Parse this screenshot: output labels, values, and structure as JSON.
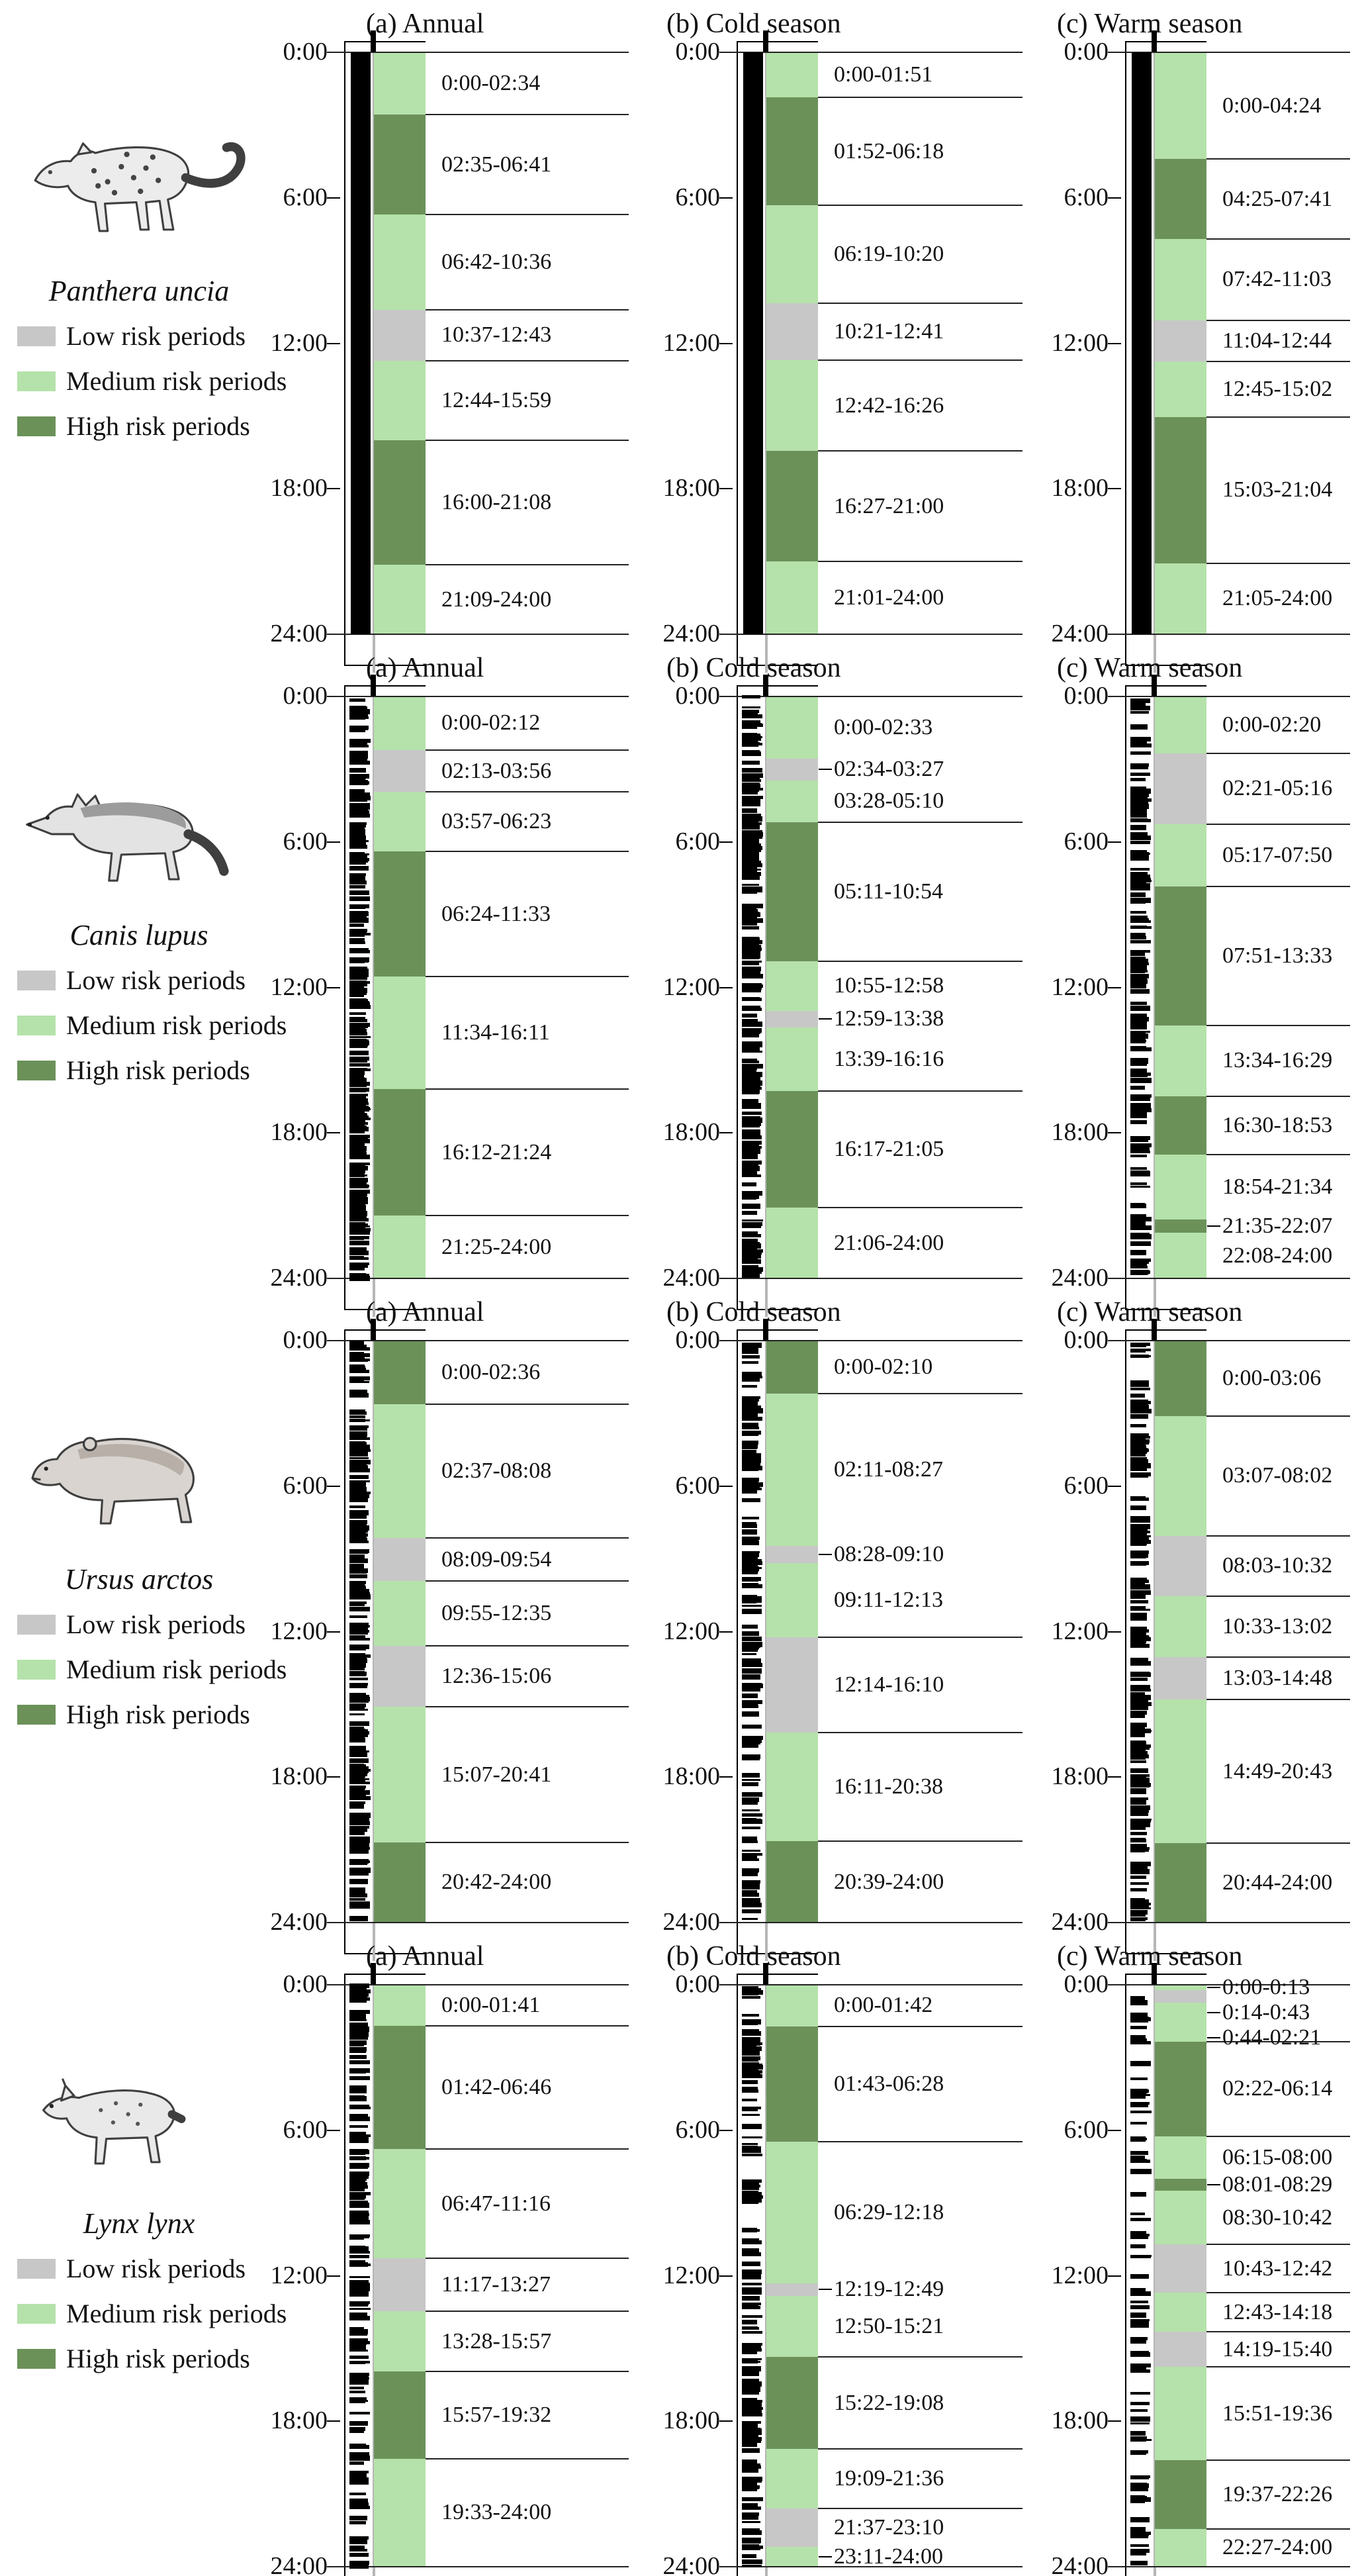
{
  "figure": {
    "seasons": [
      {
        "key": "annual",
        "label": "(a)  Annual"
      },
      {
        "key": "cold",
        "label": "(b)  Cold season"
      },
      {
        "key": "warm",
        "label": "(c)  Warm season"
      }
    ],
    "legend": [
      {
        "level": "low",
        "label": "Low risk periods"
      },
      {
        "level": "medium",
        "label": "Medium risk periods"
      },
      {
        "level": "high",
        "label": "High risk periods"
      }
    ],
    "time_ticks": [
      "0:00",
      "6:00",
      "12:00",
      "18:00",
      "24:00"
    ],
    "colors": {
      "low": "#c7c7c7",
      "medium": "#b5e2aa",
      "high": "#6b9159"
    }
  },
  "chart_data": {
    "type": "heatmap",
    "description": "Diel predation-risk periods (24-h timelines) per species and season; black rug marks show activity records",
    "time_range": [
      "0:00",
      "24:00"
    ],
    "risk_levels": [
      "low",
      "medium",
      "high"
    ],
    "species": [
      {
        "name": "Panthera uncia",
        "panels": [
          {
            "season": "annual",
            "rug": {
              "style": "solid"
            },
            "segments": [
              {
                "period": "0:00-02:34",
                "risk": "medium"
              },
              {
                "period": "02:35-06:41",
                "risk": "high"
              },
              {
                "period": "06:42-10:36",
                "risk": "medium"
              },
              {
                "period": "10:37-12:43",
                "risk": "low"
              },
              {
                "period": "12:44-15:59",
                "risk": "medium"
              },
              {
                "period": "16:00-21:08",
                "risk": "high"
              },
              {
                "period": "21:09-24:00",
                "risk": "medium"
              }
            ]
          },
          {
            "season": "cold",
            "rug": {
              "style": "solid"
            },
            "segments": [
              {
                "period": "0:00-01:51",
                "risk": "medium"
              },
              {
                "period": "01:52-06:18",
                "risk": "high"
              },
              {
                "period": "06:19-10:20",
                "risk": "medium"
              },
              {
                "period": "10:21-12:41",
                "risk": "low"
              },
              {
                "period": "12:42-16:26",
                "risk": "medium"
              },
              {
                "period": "16:27-21:00",
                "risk": "high"
              },
              {
                "period": "21:01-24:00",
                "risk": "medium"
              }
            ]
          },
          {
            "season": "warm",
            "rug": {
              "style": "solid"
            },
            "segments": [
              {
                "period": "0:00-04:24",
                "risk": "medium"
              },
              {
                "period": "04:25-07:41",
                "risk": "high"
              },
              {
                "period": "07:42-11:03",
                "risk": "medium"
              },
              {
                "period": "11:04-12:44",
                "risk": "low"
              },
              {
                "period": "12:45-15:02",
                "risk": "medium"
              },
              {
                "period": "15:03-21:04",
                "risk": "high"
              },
              {
                "period": "21:05-24:00",
                "risk": "medium"
              }
            ]
          }
        ]
      },
      {
        "name": "Canis lupus",
        "panels": [
          {
            "season": "annual",
            "rug": {
              "style": "ticks",
              "count": 260,
              "seed": 11
            },
            "segments": [
              {
                "period": "0:00-02:12",
                "risk": "medium"
              },
              {
                "period": "02:13-03:56",
                "risk": "low"
              },
              {
                "period": "03:57-06:23",
                "risk": "medium"
              },
              {
                "period": "06:24-11:33",
                "risk": "high"
              },
              {
                "period": "11:34-16:11",
                "risk": "medium"
              },
              {
                "period": "16:12-21:24",
                "risk": "high"
              },
              {
                "period": "21:25-24:00",
                "risk": "medium"
              }
            ]
          },
          {
            "season": "cold",
            "rug": {
              "style": "ticks",
              "count": 240,
              "seed": 12
            },
            "segments": [
              {
                "period": "0:00-02:33",
                "risk": "medium"
              },
              {
                "period": "02:34-03:27",
                "risk": "low"
              },
              {
                "period": "03:28-05:10",
                "risk": "medium"
              },
              {
                "period": "05:11-10:54",
                "risk": "high"
              },
              {
                "period": "10:55-12:58",
                "risk": "medium"
              },
              {
                "period": "12:59-13:38",
                "risk": "low"
              },
              {
                "period": "13:39-16:16",
                "risk": "medium"
              },
              {
                "period": "16:17-21:05",
                "risk": "high"
              },
              {
                "period": "21:06-24:00",
                "risk": "medium"
              }
            ]
          },
          {
            "season": "warm",
            "rug": {
              "style": "ticks",
              "count": 160,
              "seed": 13
            },
            "segments": [
              {
                "period": "0:00-02:20",
                "risk": "medium"
              },
              {
                "period": "02:21-05:16",
                "risk": "low"
              },
              {
                "period": "05:17-07:50",
                "risk": "medium"
              },
              {
                "period": "07:51-13:33",
                "risk": "high"
              },
              {
                "period": "13:34-16:29",
                "risk": "medium"
              },
              {
                "period": "16:30-18:53",
                "risk": "high"
              },
              {
                "period": "18:54-21:34",
                "risk": "medium"
              },
              {
                "period": "21:35-22:07",
                "risk": "high"
              },
              {
                "period": "22:08-24:00",
                "risk": "medium"
              }
            ]
          }
        ]
      },
      {
        "name": "Ursus arctos",
        "panels": [
          {
            "season": "annual",
            "rug": {
              "style": "ticks",
              "count": 215,
              "seed": 21
            },
            "segments": [
              {
                "period": "0:00-02:36",
                "risk": "high"
              },
              {
                "period": "02:37-08:08",
                "risk": "medium"
              },
              {
                "period": "08:09-09:54",
                "risk": "low"
              },
              {
                "period": "09:55-12:35",
                "risk": "medium"
              },
              {
                "period": "12:36-15:06",
                "risk": "low"
              },
              {
                "period": "15:07-20:41",
                "risk": "medium"
              },
              {
                "period": "20:42-24:00",
                "risk": "high"
              }
            ]
          },
          {
            "season": "cold",
            "rug": {
              "style": "ticks",
              "count": 150,
              "seed": 22
            },
            "segments": [
              {
                "period": "0:00-02:10",
                "risk": "high"
              },
              {
                "period": "02:11-08:27",
                "risk": "medium"
              },
              {
                "period": "08:28-09:10",
                "risk": "low"
              },
              {
                "period": "09:11-12:13",
                "risk": "medium"
              },
              {
                "period": "12:14-16:10",
                "risk": "low"
              },
              {
                "period": "16:11-20:38",
                "risk": "medium"
              },
              {
                "period": "20:39-24:00",
                "risk": "high"
              }
            ]
          },
          {
            "season": "warm",
            "rug": {
              "style": "ticks",
              "count": 175,
              "seed": 23
            },
            "segments": [
              {
                "period": "0:00-03:06",
                "risk": "high"
              },
              {
                "period": "03:07-08:02",
                "risk": "medium"
              },
              {
                "period": "08:03-10:32",
                "risk": "low"
              },
              {
                "period": "10:33-13:02",
                "risk": "medium"
              },
              {
                "period": "13:03-14:48",
                "risk": "low"
              },
              {
                "period": "14:49-20:43",
                "risk": "medium"
              },
              {
                "period": "20:44-24:00",
                "risk": "high"
              }
            ]
          }
        ]
      },
      {
        "name": "Lynx lynx",
        "panels": [
          {
            "season": "annual",
            "rug": {
              "style": "ticks",
              "count": 170,
              "seed": 31
            },
            "segments": [
              {
                "period": "0:00-01:41",
                "risk": "medium"
              },
              {
                "period": "01:42-06:46",
                "risk": "high"
              },
              {
                "period": "06:47-11:16",
                "risk": "medium"
              },
              {
                "period": "11:17-13:27",
                "risk": "low"
              },
              {
                "period": "13:28-15:57",
                "risk": "medium"
              },
              {
                "period": "15:57-19:32",
                "risk": "high"
              },
              {
                "period": "19:33-24:00",
                "risk": "medium"
              }
            ]
          },
          {
            "season": "cold",
            "rug": {
              "style": "ticks",
              "count": 160,
              "seed": 32
            },
            "segments": [
              {
                "period": "0:00-01:42",
                "risk": "medium"
              },
              {
                "period": "01:43-06:28",
                "risk": "high"
              },
              {
                "period": "06:29-12:18",
                "risk": "medium"
              },
              {
                "period": "12:19-12:49",
                "risk": "low"
              },
              {
                "period": "12:50-15:21",
                "risk": "medium"
              },
              {
                "period": "15:22-19:08",
                "risk": "high"
              },
              {
                "period": "19:09-21:36",
                "risk": "medium"
              },
              {
                "period": "21:37-23:10",
                "risk": "low"
              },
              {
                "period": "23:11-24:00",
                "risk": "medium"
              }
            ]
          },
          {
            "season": "warm",
            "rug": {
              "style": "ticks",
              "count": 85,
              "seed": 33
            },
            "segments": [
              {
                "period": "0:00-0:13",
                "risk": "medium"
              },
              {
                "period": "0:14-0:43",
                "risk": "low"
              },
              {
                "period": "0:44-02:21",
                "risk": "medium"
              },
              {
                "period": "02:22-06:14",
                "risk": "high"
              },
              {
                "period": "06:15-08:00",
                "risk": "medium"
              },
              {
                "period": "08:01-08:29",
                "risk": "high"
              },
              {
                "period": "08:30-10:42",
                "risk": "medium"
              },
              {
                "period": "10:43-12:42",
                "risk": "low"
              },
              {
                "period": "12:43-14:18",
                "risk": "medium"
              },
              {
                "period": "14:19-15:40",
                "risk": "low"
              },
              {
                "period": "15:51-19:36",
                "risk": "medium"
              },
              {
                "period": "19:37-22:26",
                "risk": "high"
              },
              {
                "period": "22:27-24:00",
                "risk": "medium"
              }
            ]
          }
        ]
      }
    ]
  }
}
